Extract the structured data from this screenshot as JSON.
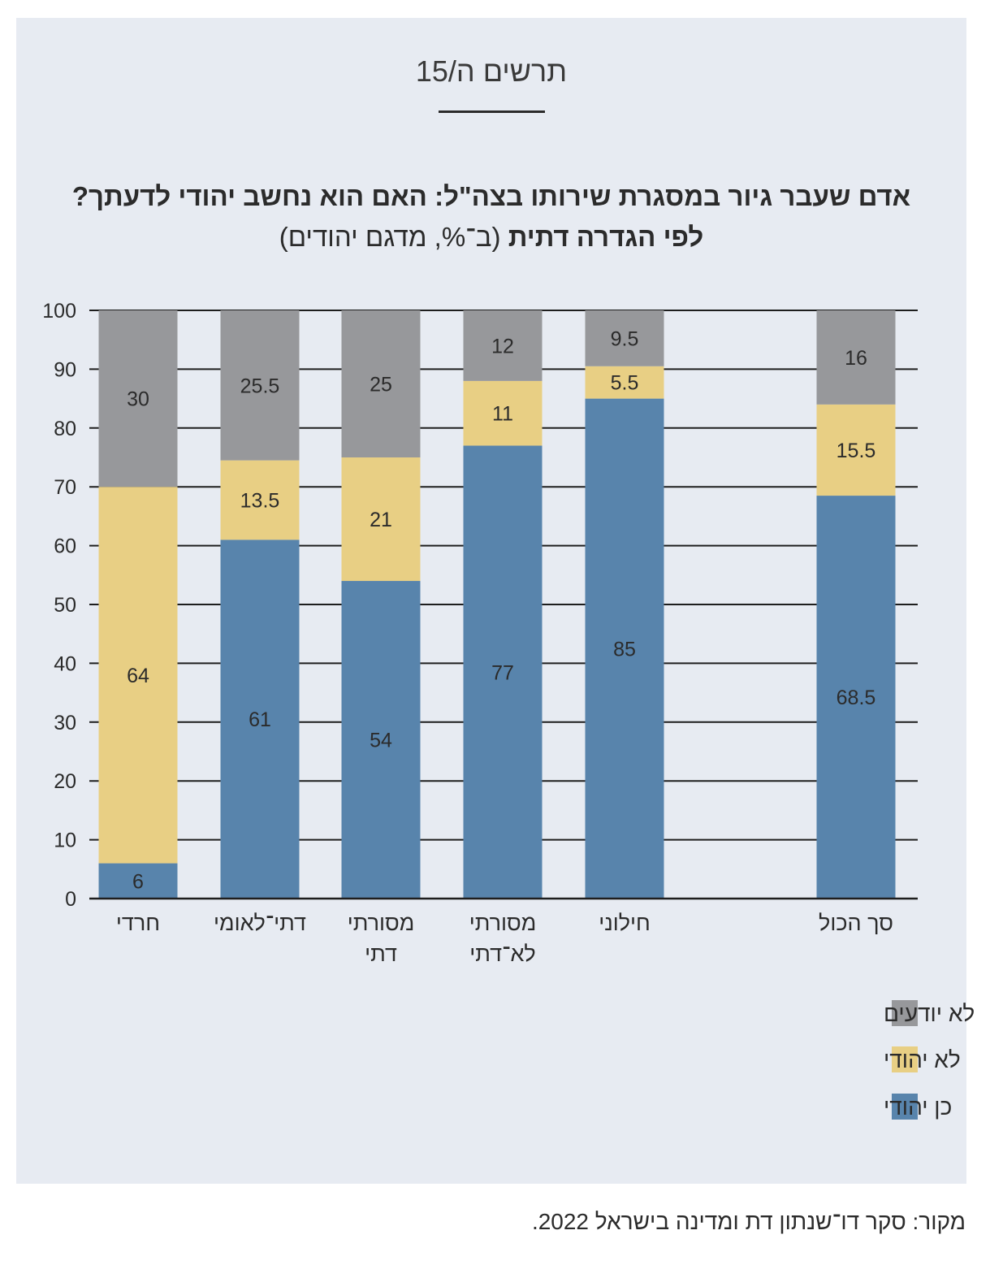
{
  "figure_label": "תרשים ה/15",
  "title_bold": "אדם שעבר גיור במסגרת שירותו בצה\"ל: האם הוא נחשב יהודי לדעתך? לפי הגדרה דתית",
  "title_sub": "(ב־%, מדגם יהודים)",
  "source": "מקור: סקר דו־שנתון דת ומדינה בישראל 2022.",
  "colors": {
    "yes": "#5884ac",
    "no": "#e8cf84",
    "dont_know": "#97989b",
    "panel": "#e7ebf2"
  },
  "chart_data": {
    "type": "bar",
    "stacked": true,
    "categories": [
      [
        "חרדי"
      ],
      [
        "דתי־לאומי"
      ],
      [
        "מסורתי",
        "דתי"
      ],
      [
        "מסורתי",
        "לא־דתי"
      ],
      [
        "חילוני"
      ],
      [
        "סך הכול"
      ]
    ],
    "series": [
      {
        "name": "כן יהודי",
        "color": "#5884ac",
        "values": [
          6,
          61,
          54,
          77,
          85,
          68.5
        ]
      },
      {
        "name": "לא יהודי",
        "color": "#e8cf84",
        "values": [
          64,
          13.5,
          21,
          11,
          5.5,
          15.5
        ]
      },
      {
        "name": "לא יודעים",
        "color": "#97989b",
        "values": [
          30,
          25.5,
          25,
          12,
          9.5,
          16
        ]
      }
    ],
    "ylim": [
      0,
      100
    ],
    "yticks": [
      0,
      10,
      20,
      30,
      40,
      50,
      60,
      70,
      80,
      90,
      100
    ],
    "legend_order": [
      2,
      1,
      0
    ],
    "legend_position": "bottom-right",
    "grid": true
  }
}
